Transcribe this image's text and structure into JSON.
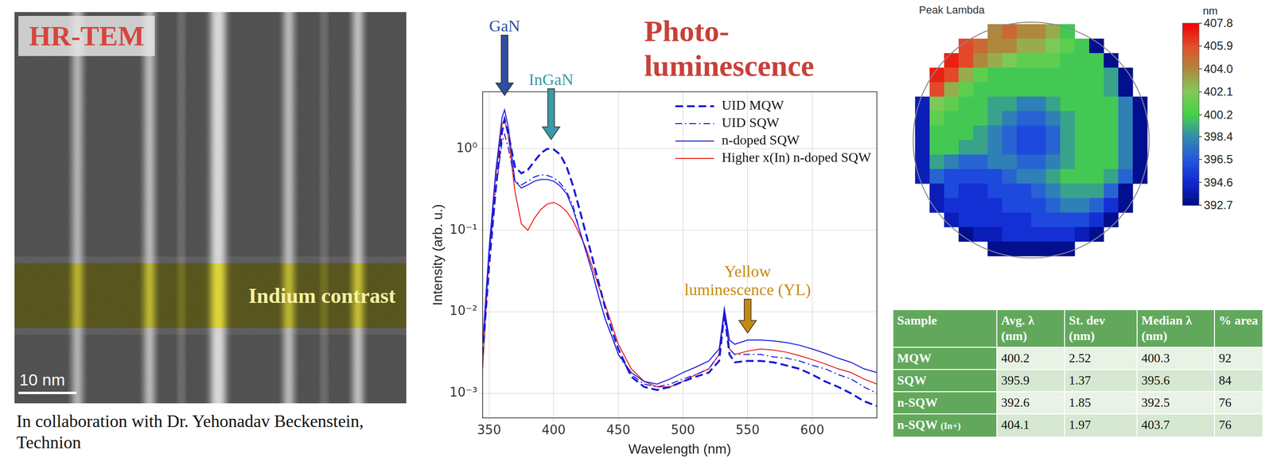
{
  "tem_image": {
    "label": "HR-TEM",
    "overlay_label": "Indium contrast",
    "scale_bar": "10 nm",
    "caption": "In collaboration with Dr. Yehonadav Beckenstein, Technion"
  },
  "chart_data": {
    "type": "line",
    "title": "Photo-luminescence",
    "x_label": "Wavelength (nm)",
    "y_label": "Intensity (arb. u.)",
    "x": [
      345,
      350,
      355,
      360,
      362,
      365,
      370,
      375,
      380,
      385,
      390,
      395,
      400,
      405,
      410,
      415,
      420,
      425,
      430,
      435,
      440,
      445,
      450,
      460,
      470,
      480,
      490,
      500,
      510,
      520,
      528,
      532,
      536,
      540,
      550,
      560,
      570,
      580,
      590,
      600,
      610,
      620,
      630,
      640,
      650
    ],
    "series": [
      {
        "name": "UID MQW",
        "color": "#1a1adb",
        "line_style": "dashed",
        "values": [
          0.003,
          0.036,
          0.3,
          1.6,
          2.3,
          1.5,
          0.6,
          0.5,
          0.55,
          0.7,
          0.88,
          1.0,
          0.98,
          0.85,
          0.6,
          0.35,
          0.18,
          0.09,
          0.045,
          0.022,
          0.011,
          0.006,
          0.0035,
          0.0016,
          0.0012,
          0.0011,
          0.0012,
          0.0014,
          0.0016,
          0.0018,
          0.0025,
          0.0095,
          0.003,
          0.0024,
          0.0025,
          0.0025,
          0.0024,
          0.0022,
          0.002,
          0.0017,
          0.0014,
          0.0012,
          0.001,
          0.0008,
          0.0007
        ]
      },
      {
        "name": "UID SQW",
        "color": "#1a1adb",
        "line_style": "dashdot",
        "values": [
          0.004,
          0.05,
          0.3,
          1.2,
          1.5,
          1.0,
          0.4,
          0.36,
          0.4,
          0.45,
          0.48,
          0.47,
          0.44,
          0.38,
          0.3,
          0.2,
          0.1,
          0.055,
          0.03,
          0.015,
          0.008,
          0.005,
          0.003,
          0.0017,
          0.0013,
          0.0012,
          0.0013,
          0.0015,
          0.0017,
          0.002,
          0.003,
          0.01,
          0.0035,
          0.003,
          0.003,
          0.003,
          0.0028,
          0.0027,
          0.0025,
          0.0022,
          0.002,
          0.0017,
          0.0015,
          0.0012,
          0.001
        ]
      },
      {
        "name": "n-doped SQW",
        "color": "#1a1adb",
        "line_style": "solid",
        "values": [
          0.004,
          0.06,
          0.5,
          2.4,
          3.0,
          1.8,
          0.4,
          0.33,
          0.36,
          0.4,
          0.42,
          0.42,
          0.4,
          0.35,
          0.28,
          0.18,
          0.1,
          0.055,
          0.03,
          0.015,
          0.008,
          0.005,
          0.003,
          0.0018,
          0.0014,
          0.0013,
          0.0015,
          0.0018,
          0.0021,
          0.0025,
          0.0035,
          0.011,
          0.0045,
          0.004,
          0.0045,
          0.0045,
          0.0044,
          0.0042,
          0.0039,
          0.0035,
          0.0031,
          0.0027,
          0.0024,
          0.002,
          0.0018
        ]
      },
      {
        "name": "Higher x(In) n-doped SQW",
        "color": "#e8231c",
        "line_style": "solid",
        "values": [
          0.002,
          0.05,
          0.45,
          2.0,
          2.3,
          1.4,
          0.3,
          0.12,
          0.1,
          0.14,
          0.18,
          0.21,
          0.22,
          0.2,
          0.17,
          0.13,
          0.09,
          0.06,
          0.035,
          0.02,
          0.012,
          0.007,
          0.004,
          0.002,
          0.0014,
          0.0012,
          0.0012,
          0.0014,
          0.0017,
          0.002,
          0.003,
          0.01,
          0.0035,
          0.003,
          0.0033,
          0.0035,
          0.0034,
          0.0032,
          0.0029,
          0.0026,
          0.0023,
          0.002,
          0.0018,
          0.0015,
          0.0013
        ]
      }
    ],
    "xlim": [
      345,
      650
    ],
    "xticks": [
      350,
      400,
      450,
      500,
      550,
      600
    ],
    "ylim": [
      0.0005,
      5
    ],
    "yticks": [
      {
        "value": 0.001,
        "label": "10⁻³"
      },
      {
        "value": 0.01,
        "label": "10⁻²"
      },
      {
        "value": 0.1,
        "label": "10⁻¹"
      },
      {
        "value": 1,
        "label": "10⁰"
      }
    ],
    "log": "y",
    "grid": true,
    "legend": "upper right",
    "annotations": [
      {
        "text": "GaN",
        "x": 362,
        "y": 4.5,
        "color": "#2e4fa0"
      },
      {
        "text": "InGaN",
        "x": 398,
        "y": 1.3,
        "color": "#3a9aa8"
      },
      {
        "text": "Yellow luminescence (YL)",
        "x": 550,
        "y": 0.0055,
        "color": "#c48a10"
      }
    ]
  },
  "wafer_map": {
    "title": "Peak Lambda",
    "unit": "nm",
    "cells": [
      [
        null,
        null,
        null,
        null,
        null,
        404,
        405,
        404,
        404,
        403,
        400,
        null,
        null,
        null,
        null,
        null
      ],
      [
        null,
        null,
        null,
        406,
        405,
        404,
        404,
        403,
        403,
        402,
        401,
        400,
        393,
        null,
        null,
        null
      ],
      [
        null,
        null,
        407,
        406,
        404,
        403,
        402,
        401,
        401,
        401,
        400,
        400,
        400,
        393,
        null,
        null
      ],
      [
        null,
        407,
        406,
        403,
        401,
        400,
        400,
        400,
        400,
        400,
        400,
        400,
        400,
        399,
        393,
        null
      ],
      [
        null,
        406,
        403,
        401,
        400,
        400,
        400,
        400,
        400,
        400,
        400,
        400,
        400,
        399,
        393,
        null
      ],
      [
        394,
        402,
        401,
        400,
        400,
        399,
        399,
        398,
        398,
        399,
        400,
        400,
        400,
        400,
        398,
        393
      ],
      [
        394,
        401,
        400,
        400,
        400,
        399,
        398,
        397,
        397,
        398,
        399,
        400,
        400,
        400,
        398,
        393
      ],
      [
        394,
        400,
        400,
        400,
        399,
        398,
        397,
        396,
        396,
        397,
        399,
        400,
        400,
        400,
        398,
        393
      ],
      [
        394,
        400,
        400,
        399,
        399,
        398,
        397,
        396,
        396,
        397,
        399,
        400,
        400,
        400,
        398,
        393
      ],
      [
        394,
        399,
        398,
        397,
        397,
        398,
        398,
        397,
        397,
        398,
        399,
        400,
        400,
        400,
        398,
        393
      ],
      [
        394,
        397,
        396,
        396,
        396,
        396,
        397,
        398,
        398,
        399,
        400,
        400,
        400,
        399,
        397,
        393
      ],
      [
        null,
        394,
        396,
        395,
        395,
        396,
        396,
        396,
        397,
        398,
        399,
        399,
        399,
        397,
        393,
        null
      ],
      [
        null,
        394,
        395,
        395,
        395,
        395,
        396,
        396,
        396,
        397,
        398,
        398,
        397,
        395,
        393,
        null
      ],
      [
        null,
        null,
        394,
        395,
        395,
        395,
        395,
        395,
        396,
        396,
        396,
        396,
        395,
        393,
        null,
        null
      ],
      [
        null,
        null,
        null,
        393,
        394,
        394,
        395,
        395,
        395,
        395,
        395,
        394,
        393,
        null,
        null,
        null
      ],
      [
        null,
        null,
        null,
        null,
        null,
        393,
        393,
        393,
        393,
        393,
        393,
        null,
        null,
        null,
        null,
        null
      ]
    ],
    "color_range": [
      392.7,
      407.8
    ],
    "color_ticks": [
      392.7,
      394.6,
      396.5,
      398.4,
      400.2,
      402.1,
      {
        "value": 404,
        "label": "404.0"
      },
      405.9,
      407.8
    ]
  },
  "table": {
    "header": [
      "Sample",
      "Avg. λ (nm)",
      "St. dev (nm)",
      "Median λ (nm)",
      "% area"
    ],
    "rows": [
      [
        "MQW",
        "400.2",
        "2.52",
        "400.3",
        "92"
      ],
      [
        "SQW",
        "395.9",
        "1.37",
        "395.6",
        "84"
      ],
      [
        "n-SQW",
        "392.6",
        "1.85",
        "392.5",
        "76"
      ],
      [
        "n-SQW (In+)",
        "404.1",
        "1.97",
        "403.7",
        "76"
      ]
    ]
  }
}
